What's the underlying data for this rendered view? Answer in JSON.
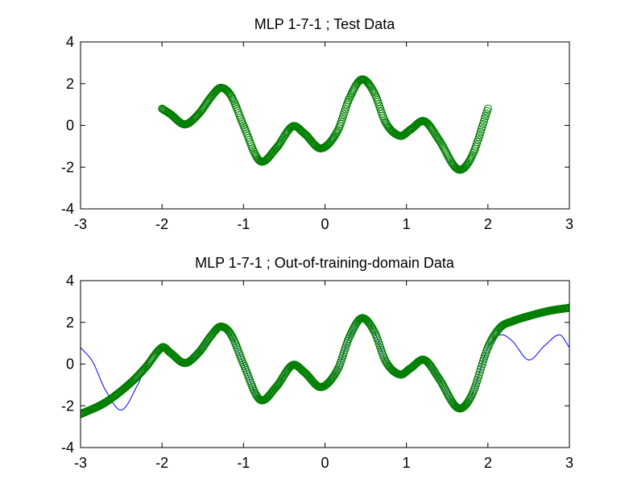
{
  "colors": {
    "background": "#ffffff",
    "axes": "#000000",
    "marker_series": "#007f00",
    "line_series": "#0000ff"
  },
  "chart_data": [
    {
      "type": "scatter",
      "title": "MLP 1-7-1 ; Test Data",
      "xlabel": "",
      "ylabel": "",
      "xlim": [
        -3,
        3
      ],
      "ylim": [
        -4,
        4
      ],
      "xticks": [
        "-3",
        "-2",
        "-1",
        "0",
        "1",
        "2",
        "3"
      ],
      "yticks": [
        "-4",
        "-2",
        "0",
        "2",
        "4"
      ],
      "grid": false,
      "legend": "none",
      "series": [
        {
          "kind": "markers",
          "marker": "circle",
          "color": "#007f00",
          "x_range": [
            -2,
            2
          ],
          "keypoints": [
            [
              -2.0,
              0.8
            ],
            [
              -1.9,
              0.55
            ],
            [
              -1.72,
              0.05
            ],
            [
              -1.55,
              0.55
            ],
            [
              -1.4,
              1.35
            ],
            [
              -1.28,
              1.8
            ],
            [
              -1.15,
              1.4
            ],
            [
              -1.0,
              0.0
            ],
            [
              -0.8,
              -1.7
            ],
            [
              -0.6,
              -1.1
            ],
            [
              -0.4,
              -0.05
            ],
            [
              -0.25,
              -0.4
            ],
            [
              -0.05,
              -1.1
            ],
            [
              0.15,
              -0.3
            ],
            [
              0.3,
              1.3
            ],
            [
              0.45,
              2.2
            ],
            [
              0.6,
              1.6
            ],
            [
              0.75,
              0.1
            ],
            [
              0.92,
              -0.5
            ],
            [
              1.05,
              -0.2
            ],
            [
              1.22,
              0.2
            ],
            [
              1.4,
              -0.7
            ],
            [
              1.63,
              -2.1
            ],
            [
              1.8,
              -1.5
            ],
            [
              2.0,
              0.8
            ]
          ]
        }
      ]
    },
    {
      "type": "scatter",
      "title": "MLP 1-7-1 ; Out-of-training-domain Data",
      "xlabel": "",
      "ylabel": "",
      "xlim": [
        -3,
        3
      ],
      "ylim": [
        -4,
        4
      ],
      "xticks": [
        "-3",
        "-2",
        "-1",
        "0",
        "1",
        "2",
        "3"
      ],
      "yticks": [
        "-4",
        "-2",
        "0",
        "2",
        "4"
      ],
      "grid": false,
      "legend": "none",
      "series": [
        {
          "kind": "line",
          "color": "#0000ff",
          "x_range": [
            -3,
            3
          ],
          "keypoints": [
            [
              -3.0,
              0.8
            ],
            [
              -2.85,
              0.1
            ],
            [
              -2.7,
              -1.2
            ],
            [
              -2.5,
              -2.2
            ],
            [
              -2.3,
              -1.0
            ],
            [
              -2.15,
              0.3
            ],
            [
              -2.0,
              0.8
            ],
            [
              -1.9,
              0.55
            ],
            [
              -1.72,
              0.05
            ],
            [
              -1.55,
              0.55
            ],
            [
              -1.4,
              1.35
            ],
            [
              -1.28,
              1.8
            ],
            [
              -1.15,
              1.4
            ],
            [
              -1.0,
              0.0
            ],
            [
              -0.8,
              -1.7
            ],
            [
              -0.6,
              -1.1
            ],
            [
              -0.4,
              -0.05
            ],
            [
              -0.25,
              -0.4
            ],
            [
              -0.05,
              -1.1
            ],
            [
              0.15,
              -0.3
            ],
            [
              0.3,
              1.3
            ],
            [
              0.45,
              2.2
            ],
            [
              0.6,
              1.6
            ],
            [
              0.75,
              0.1
            ],
            [
              0.92,
              -0.5
            ],
            [
              1.05,
              -0.2
            ],
            [
              1.22,
              0.2
            ],
            [
              1.4,
              -0.7
            ],
            [
              1.63,
              -2.1
            ],
            [
              1.8,
              -1.5
            ],
            [
              2.0,
              0.8
            ],
            [
              2.15,
              1.4
            ],
            [
              2.3,
              1.1
            ],
            [
              2.5,
              0.2
            ],
            [
              2.7,
              0.9
            ],
            [
              2.88,
              1.4
            ],
            [
              3.0,
              0.8
            ]
          ]
        },
        {
          "kind": "markers",
          "marker": "circle",
          "color": "#007f00",
          "x_range": [
            -3,
            3
          ],
          "keypoints": [
            [
              -3.0,
              -2.4
            ],
            [
              -2.7,
              -1.85
            ],
            [
              -2.4,
              -0.95
            ],
            [
              -2.2,
              -0.15
            ],
            [
              -2.0,
              0.8
            ],
            [
              -1.9,
              0.55
            ],
            [
              -1.72,
              0.05
            ],
            [
              -1.55,
              0.55
            ],
            [
              -1.4,
              1.35
            ],
            [
              -1.28,
              1.8
            ],
            [
              -1.15,
              1.4
            ],
            [
              -1.0,
              0.0
            ],
            [
              -0.8,
              -1.7
            ],
            [
              -0.6,
              -1.1
            ],
            [
              -0.4,
              -0.05
            ],
            [
              -0.25,
              -0.4
            ],
            [
              -0.05,
              -1.1
            ],
            [
              0.15,
              -0.3
            ],
            [
              0.3,
              1.3
            ],
            [
              0.45,
              2.2
            ],
            [
              0.6,
              1.6
            ],
            [
              0.75,
              0.1
            ],
            [
              0.92,
              -0.5
            ],
            [
              1.05,
              -0.2
            ],
            [
              1.22,
              0.2
            ],
            [
              1.4,
              -0.7
            ],
            [
              1.63,
              -2.1
            ],
            [
              1.8,
              -1.5
            ],
            [
              2.0,
              0.8
            ],
            [
              2.15,
              1.75
            ],
            [
              2.3,
              2.05
            ],
            [
              2.5,
              2.3
            ],
            [
              2.75,
              2.55
            ],
            [
              3.0,
              2.7
            ]
          ]
        }
      ]
    }
  ]
}
